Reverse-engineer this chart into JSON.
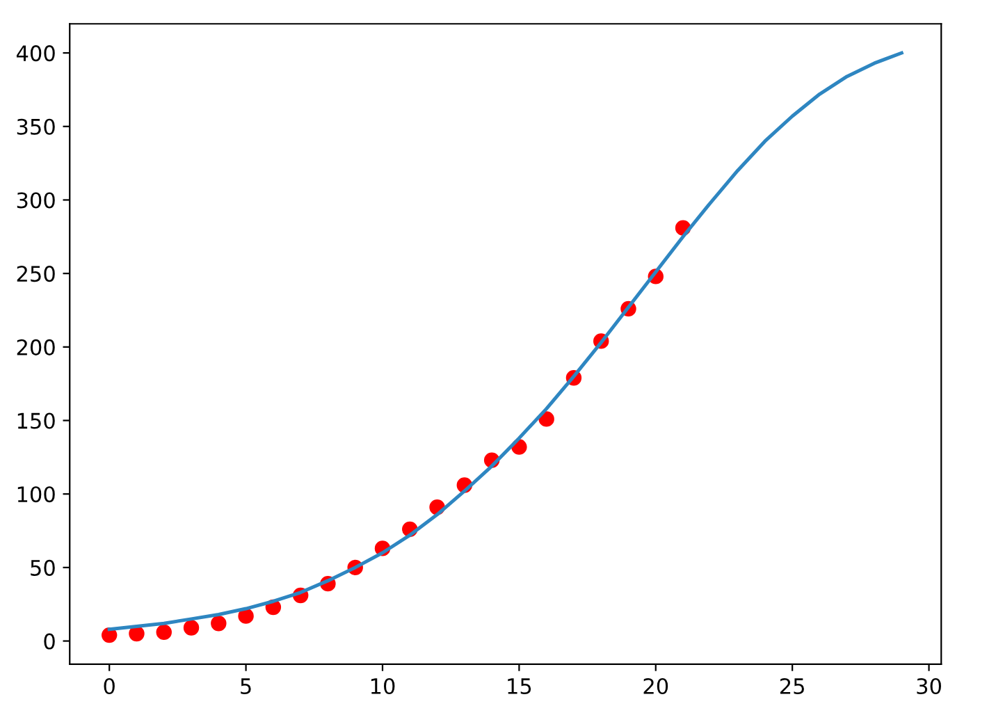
{
  "chart_data": {
    "type": "scatter",
    "xlim": [
      -1.45,
      30.45
    ],
    "ylim": [
      -15.8,
      419.8
    ],
    "xticks": [
      0,
      5,
      10,
      15,
      20,
      25,
      30
    ],
    "yticks": [
      0,
      50,
      100,
      150,
      200,
      250,
      300,
      350,
      400
    ],
    "grid": false,
    "series": [
      {
        "type": "line",
        "color": "#2e86c1",
        "marker": "none",
        "line_style": "solid",
        "x": [
          0,
          1,
          2,
          3,
          4,
          5,
          6,
          7,
          8,
          9,
          10,
          11,
          12,
          13,
          14,
          15,
          16,
          17,
          18,
          19,
          20,
          21,
          22,
          23,
          24,
          25,
          26,
          27,
          28,
          29
        ],
        "values": [
          8,
          10,
          12,
          15,
          18,
          22,
          27,
          33,
          41,
          50,
          60,
          72,
          86,
          102,
          119,
          138,
          158,
          180,
          203,
          227,
          251,
          275,
          298,
          320,
          340,
          357,
          372,
          384,
          393,
          400
        ]
      },
      {
        "color": "#ff0000",
        "marker": "circle",
        "x": [
          0,
          1,
          2,
          3,
          4,
          5,
          6,
          7,
          8,
          9,
          10,
          11,
          12,
          13,
          14,
          15,
          16,
          17,
          18,
          19,
          20,
          21
        ],
        "values": [
          4,
          5,
          6,
          9,
          12,
          17,
          23,
          31,
          39,
          50,
          63,
          76,
          91,
          106,
          123,
          132,
          151,
          179,
          204,
          226,
          248,
          281
        ]
      }
    ]
  }
}
